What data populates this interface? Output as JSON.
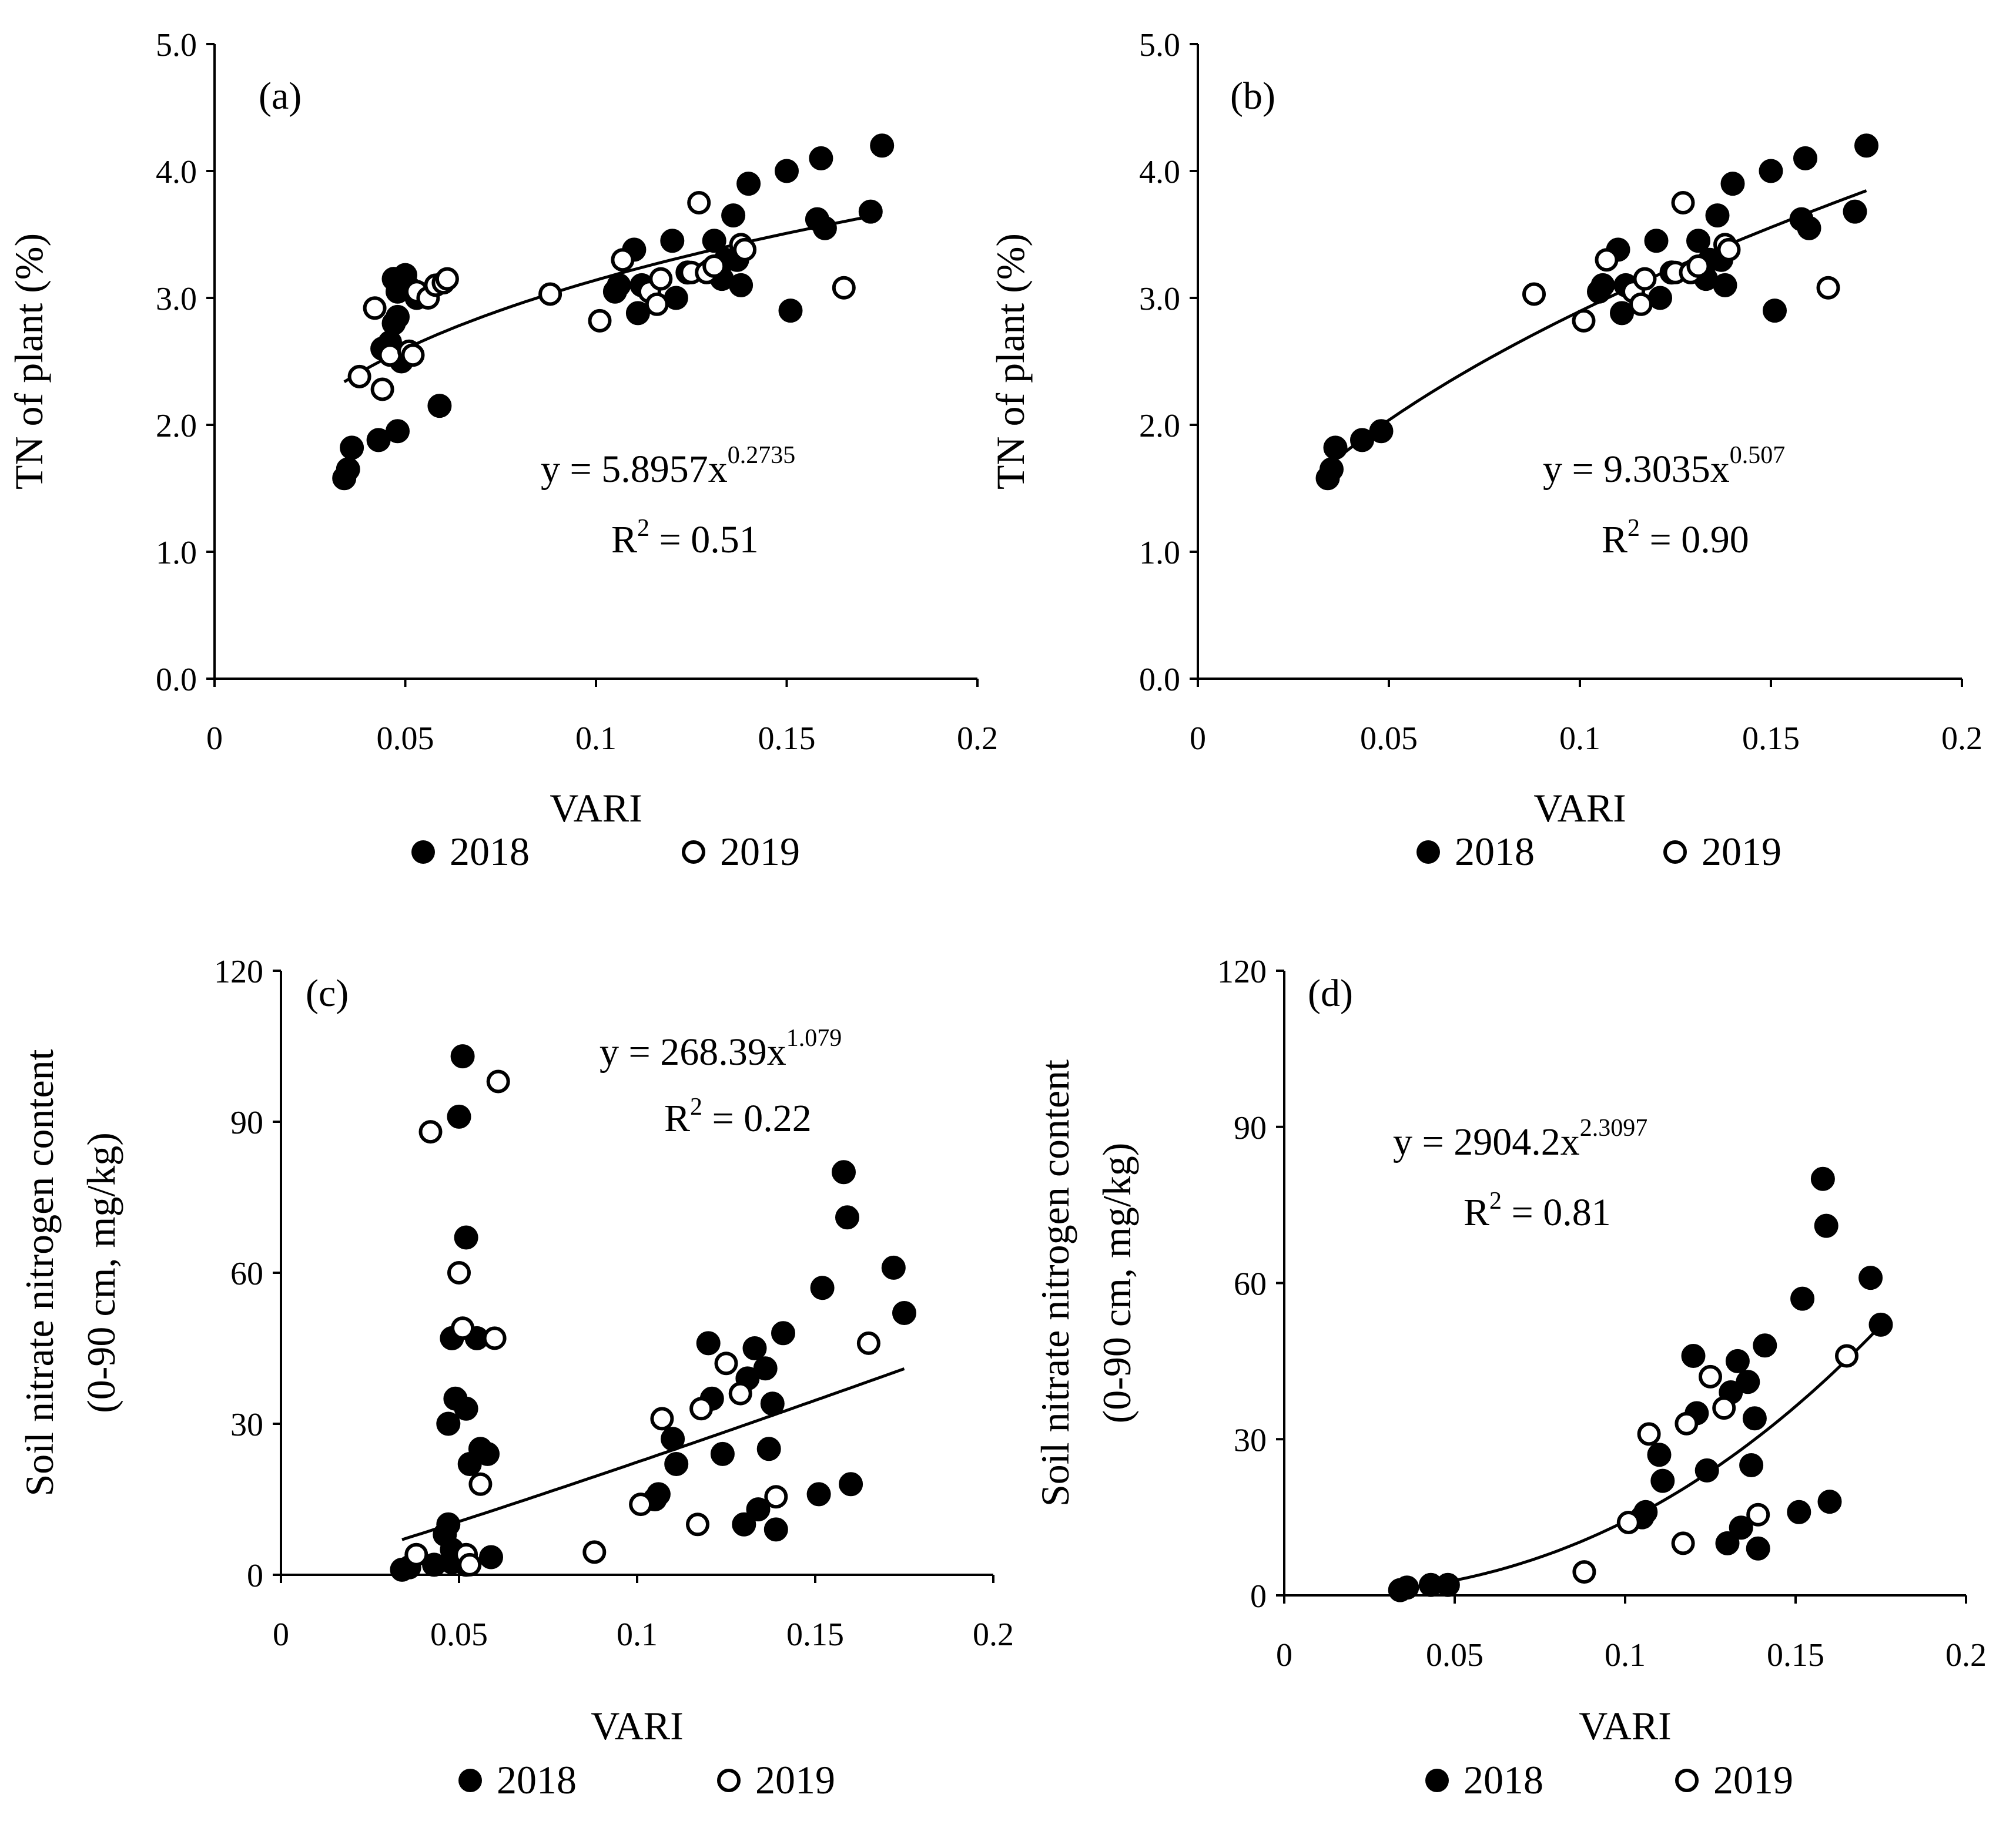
{
  "figure": {
    "legend": {
      "series_2018": "2018",
      "series_2019": "2019"
    }
  },
  "chart_data": [
    {
      "type": "scatter",
      "panel": "(a)",
      "xlabel": "VARI",
      "ylabel": "TN of plant (%)",
      "xlim": [
        0,
        0.2
      ],
      "ylim": [
        0,
        5
      ],
      "xticks": [
        "0",
        "0.05",
        "0.1",
        "0.15",
        "0.2"
      ],
      "yticks": [
        "0.0",
        "1.0",
        "2.0",
        "3.0",
        "4.0",
        "5.0"
      ],
      "equation": {
        "prefix": "y = 5.8957x",
        "exponent": "0.2735"
      },
      "r2": {
        "prefix": "R",
        "sup": "2",
        "suffix": " = 0.51"
      },
      "fit": {
        "model": "power",
        "a": 5.8957,
        "b": 0.2735,
        "xrange": [
          0.034,
          0.175
        ]
      },
      "series": [
        {
          "name": "2018",
          "filled": true,
          "points": [
            [
              0.034,
              1.58
            ],
            [
              0.035,
              1.65
            ],
            [
              0.036,
              1.82
            ],
            [
              0.043,
              1.88
            ],
            [
              0.048,
              1.95
            ],
            [
              0.059,
              2.15
            ],
            [
              0.044,
              2.6
            ],
            [
              0.046,
              2.65
            ],
            [
              0.047,
              2.8
            ],
            [
              0.048,
              2.85
            ],
            [
              0.049,
              2.5
            ],
            [
              0.047,
              3.15
            ],
            [
              0.048,
              3.05
            ],
            [
              0.05,
              3.18
            ],
            [
              0.051,
              3.08
            ],
            [
              0.053,
              3.0
            ],
            [
              0.055,
              3.02
            ],
            [
              0.105,
              3.05
            ],
            [
              0.106,
              3.1
            ],
            [
              0.11,
              3.38
            ],
            [
              0.111,
              2.88
            ],
            [
              0.112,
              3.1
            ],
            [
              0.12,
              3.45
            ],
            [
              0.121,
              3.0
            ],
            [
              0.124,
              3.2
            ],
            [
              0.13,
              3.22
            ],
            [
              0.131,
              3.45
            ],
            [
              0.133,
              3.15
            ],
            [
              0.134,
              3.3
            ],
            [
              0.136,
              3.65
            ],
            [
              0.137,
              3.3
            ],
            [
              0.138,
              3.1
            ],
            [
              0.14,
              3.9
            ],
            [
              0.15,
              4.0
            ],
            [
              0.151,
              2.9
            ],
            [
              0.158,
              3.62
            ],
            [
              0.159,
              4.1
            ],
            [
              0.16,
              3.55
            ],
            [
              0.172,
              3.68
            ],
            [
              0.175,
              4.2
            ]
          ]
        },
        {
          "name": "2019",
          "filled": false,
          "points": [
            [
              0.038,
              2.38
            ],
            [
              0.042,
              2.92
            ],
            [
              0.044,
              2.28
            ],
            [
              0.046,
              2.55
            ],
            [
              0.051,
              2.58
            ],
            [
              0.052,
              2.55
            ],
            [
              0.053,
              3.05
            ],
            [
              0.056,
              3.0
            ],
            [
              0.058,
              3.1
            ],
            [
              0.06,
              3.12
            ],
            [
              0.061,
              3.15
            ],
            [
              0.088,
              3.03
            ],
            [
              0.101,
              2.82
            ],
            [
              0.107,
              3.3
            ],
            [
              0.114,
              3.05
            ],
            [
              0.116,
              2.95
            ],
            [
              0.117,
              3.15
            ],
            [
              0.125,
              3.2
            ],
            [
              0.127,
              3.75
            ],
            [
              0.129,
              3.2
            ],
            [
              0.131,
              3.25
            ],
            [
              0.138,
              3.42
            ],
            [
              0.139,
              3.38
            ],
            [
              0.165,
              3.08
            ]
          ]
        }
      ]
    },
    {
      "type": "scatter",
      "panel": "(b)",
      "xlabel": "VARI",
      "ylabel": "TN of plant (%)",
      "xlim": [
        0,
        0.2
      ],
      "ylim": [
        0,
        5
      ],
      "xticks": [
        "0",
        "0.05",
        "0.1",
        "0.15",
        "0.2"
      ],
      "yticks": [
        "0.0",
        "1.0",
        "2.0",
        "3.0",
        "4.0",
        "5.0"
      ],
      "equation": {
        "prefix": "y = 9.3035x",
        "exponent": "0.507"
      },
      "r2": {
        "prefix": "R",
        "sup": "2",
        "suffix": " = 0.90"
      },
      "fit": {
        "model": "power",
        "a": 9.3035,
        "b": 0.507,
        "xrange": [
          0.034,
          0.175
        ]
      },
      "series": [
        {
          "name": "2018",
          "filled": true,
          "points": [
            [
              0.034,
              1.58
            ],
            [
              0.035,
              1.65
            ],
            [
              0.036,
              1.82
            ],
            [
              0.043,
              1.88
            ],
            [
              0.048,
              1.95
            ],
            [
              0.105,
              3.05
            ],
            [
              0.106,
              3.1
            ],
            [
              0.11,
              3.38
            ],
            [
              0.111,
              2.88
            ],
            [
              0.112,
              3.1
            ],
            [
              0.12,
              3.45
            ],
            [
              0.121,
              3.0
            ],
            [
              0.124,
              3.2
            ],
            [
              0.13,
              3.22
            ],
            [
              0.131,
              3.45
            ],
            [
              0.133,
              3.15
            ],
            [
              0.134,
              3.3
            ],
            [
              0.136,
              3.65
            ],
            [
              0.137,
              3.3
            ],
            [
              0.138,
              3.1
            ],
            [
              0.14,
              3.9
            ],
            [
              0.15,
              4.0
            ],
            [
              0.151,
              2.9
            ],
            [
              0.158,
              3.62
            ],
            [
              0.159,
              4.1
            ],
            [
              0.16,
              3.55
            ],
            [
              0.172,
              3.68
            ],
            [
              0.175,
              4.2
            ]
          ]
        },
        {
          "name": "2019",
          "filled": false,
          "points": [
            [
              0.088,
              3.03
            ],
            [
              0.101,
              2.82
            ],
            [
              0.107,
              3.3
            ],
            [
              0.114,
              3.05
            ],
            [
              0.116,
              2.95
            ],
            [
              0.117,
              3.15
            ],
            [
              0.125,
              3.2
            ],
            [
              0.127,
              3.75
            ],
            [
              0.129,
              3.2
            ],
            [
              0.131,
              3.25
            ],
            [
              0.138,
              3.42
            ],
            [
              0.139,
              3.38
            ],
            [
              0.165,
              3.08
            ]
          ]
        }
      ]
    },
    {
      "type": "scatter",
      "panel": "(c)",
      "xlabel": "VARI",
      "ylabel": "Soil nitrate nitrogen content",
      "ylabel2": "(0-90 cm, mg/kg)",
      "xlim": [
        0,
        0.2
      ],
      "ylim": [
        0,
        120
      ],
      "xticks": [
        "0",
        "0.05",
        "0.1",
        "0.15",
        "0.2"
      ],
      "yticks": [
        "0",
        "30",
        "60",
        "90",
        "120"
      ],
      "equation": {
        "prefix": "y = 268.39x",
        "exponent": "1.079"
      },
      "r2": {
        "prefix": "R",
        "sup": "2",
        "suffix": " = 0.22"
      },
      "fit": {
        "model": "power",
        "a": 268.39,
        "b": 1.079,
        "xrange": [
          0.034,
          0.175
        ]
      },
      "series": [
        {
          "name": "2018",
          "filled": true,
          "points": [
            [
              0.034,
              1
            ],
            [
              0.036,
              1.5
            ],
            [
              0.043,
              2
            ],
            [
              0.048,
              2.5
            ],
            [
              0.052,
              2
            ],
            [
              0.059,
              3.5
            ],
            [
              0.046,
              8
            ],
            [
              0.047,
              10
            ],
            [
              0.048,
              5
            ],
            [
              0.047,
              30
            ],
            [
              0.048,
              47
            ],
            [
              0.049,
              35
            ],
            [
              0.05,
              91
            ],
            [
              0.051,
              103
            ],
            [
              0.052,
              67
            ],
            [
              0.052,
              33
            ],
            [
              0.053,
              22
            ],
            [
              0.055,
              47
            ],
            [
              0.056,
              25
            ],
            [
              0.058,
              24
            ],
            [
              0.105,
              15
            ],
            [
              0.106,
              16
            ],
            [
              0.11,
              27
            ],
            [
              0.111,
              22
            ],
            [
              0.12,
              46
            ],
            [
              0.121,
              35
            ],
            [
              0.124,
              24
            ],
            [
              0.13,
              10
            ],
            [
              0.131,
              39
            ],
            [
              0.133,
              45
            ],
            [
              0.134,
              13
            ],
            [
              0.136,
              41
            ],
            [
              0.137,
              25
            ],
            [
              0.138,
              34
            ],
            [
              0.139,
              9
            ],
            [
              0.141,
              48
            ],
            [
              0.151,
              16
            ],
            [
              0.152,
              57
            ],
            [
              0.158,
              80
            ],
            [
              0.159,
              71
            ],
            [
              0.16,
              18
            ],
            [
              0.172,
              61
            ],
            [
              0.175,
              52
            ]
          ]
        },
        {
          "name": "2019",
          "filled": false,
          "points": [
            [
              0.038,
              4
            ],
            [
              0.042,
              88
            ],
            [
              0.05,
              60
            ],
            [
              0.051,
              49
            ],
            [
              0.052,
              4
            ],
            [
              0.053,
              2
            ],
            [
              0.056,
              18
            ],
            [
              0.06,
              47
            ],
            [
              0.061,
              98
            ],
            [
              0.088,
              4.5
            ],
            [
              0.101,
              14
            ],
            [
              0.107,
              31
            ],
            [
              0.117,
              10
            ],
            [
              0.118,
              33
            ],
            [
              0.125,
              42
            ],
            [
              0.129,
              36
            ],
            [
              0.139,
              15.5
            ],
            [
              0.165,
              46
            ]
          ]
        }
      ]
    },
    {
      "type": "scatter",
      "panel": "(d)",
      "xlabel": "VARI",
      "ylabel": "Soil nitrate nitrogen content",
      "ylabel2": "(0-90 cm, mg/kg)",
      "xlim": [
        0,
        0.2
      ],
      "ylim": [
        0,
        120
      ],
      "xticks": [
        "0",
        "0.05",
        "0.1",
        "0.15",
        "0.2"
      ],
      "yticks": [
        "0",
        "30",
        "60",
        "90",
        "120"
      ],
      "equation": {
        "prefix": "y = 2904.2x",
        "exponent": "2.3097"
      },
      "r2": {
        "prefix": "R",
        "sup": "2",
        "suffix": " = 0.81"
      },
      "fit": {
        "model": "power",
        "a": 2904.2,
        "b": 2.3097,
        "xrange": [
          0.034,
          0.175
        ]
      },
      "series": [
        {
          "name": "2018",
          "filled": true,
          "points": [
            [
              0.034,
              1
            ],
            [
              0.036,
              1.5
            ],
            [
              0.043,
              2
            ],
            [
              0.048,
              2
            ],
            [
              0.105,
              15
            ],
            [
              0.106,
              16
            ],
            [
              0.11,
              27
            ],
            [
              0.111,
              22
            ],
            [
              0.12,
              46
            ],
            [
              0.121,
              35
            ],
            [
              0.124,
              24
            ],
            [
              0.13,
              10
            ],
            [
              0.131,
              39
            ],
            [
              0.133,
              45
            ],
            [
              0.134,
              13
            ],
            [
              0.136,
              41
            ],
            [
              0.137,
              25
            ],
            [
              0.138,
              34
            ],
            [
              0.139,
              9
            ],
            [
              0.141,
              48
            ],
            [
              0.151,
              16
            ],
            [
              0.152,
              57
            ],
            [
              0.158,
              80
            ],
            [
              0.159,
              71
            ],
            [
              0.16,
              18
            ],
            [
              0.172,
              61
            ],
            [
              0.175,
              52
            ]
          ]
        },
        {
          "name": "2019",
          "filled": false,
          "points": [
            [
              0.088,
              4.5
            ],
            [
              0.101,
              14
            ],
            [
              0.107,
              31
            ],
            [
              0.117,
              10
            ],
            [
              0.118,
              33
            ],
            [
              0.125,
              42
            ],
            [
              0.129,
              36
            ],
            [
              0.139,
              15.5
            ],
            [
              0.165,
              46
            ]
          ]
        }
      ]
    }
  ]
}
